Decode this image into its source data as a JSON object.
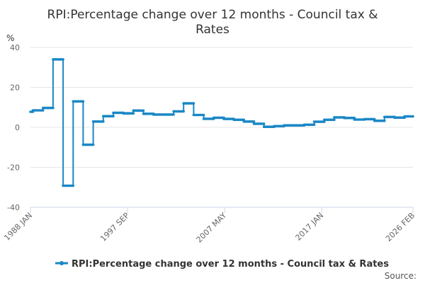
{
  "chart_data": {
    "type": "line",
    "title_lines": [
      "RPI:Percentage change over 12 months - Council tax &",
      "Rates"
    ],
    "ylabel": "%",
    "ylim": [
      -40,
      40
    ],
    "yticks": [
      "40",
      "20",
      "0",
      "-20",
      "-40"
    ],
    "ytick_values": [
      40,
      20,
      0,
      -20,
      -40
    ],
    "xlim": [
      1988.0,
      2026.083
    ],
    "xticks": [
      {
        "label": "1988 JAN",
        "x": 1988.0
      },
      {
        "label": "1997 SEP",
        "x": 1997.667
      },
      {
        "label": "2007 MAY",
        "x": 2007.333
      },
      {
        "label": "2017 JAN",
        "x": 2017.0
      },
      {
        "label": "2026 FEB",
        "x": 2026.083
      }
    ],
    "series": [
      {
        "name": "RPI:Percentage change over 12 months - Council tax & Rates",
        "color": "#1a87c6",
        "steps": [
          {
            "start": 1988.0,
            "end": 1988.25,
            "value": 7.8
          },
          {
            "start": 1988.25,
            "end": 1989.25,
            "value": 8.5
          },
          {
            "start": 1989.25,
            "end": 1990.25,
            "value": 9.7
          },
          {
            "start": 1990.25,
            "end": 1991.25,
            "value": 34.0
          },
          {
            "start": 1991.25,
            "end": 1992.25,
            "value": -29.2
          },
          {
            "start": 1992.25,
            "end": 1993.25,
            "value": 13.0
          },
          {
            "start": 1993.25,
            "end": 1994.25,
            "value": -8.7
          },
          {
            "start": 1994.25,
            "end": 1995.25,
            "value": 2.9
          },
          {
            "start": 1995.25,
            "end": 1996.25,
            "value": 5.6
          },
          {
            "start": 1996.25,
            "end": 1997.25,
            "value": 7.3
          },
          {
            "start": 1997.25,
            "end": 1998.25,
            "value": 7.0
          },
          {
            "start": 1998.25,
            "end": 1999.25,
            "value": 8.4
          },
          {
            "start": 1999.25,
            "end": 2000.25,
            "value": 6.8
          },
          {
            "start": 2000.25,
            "end": 2002.25,
            "value": 6.4
          },
          {
            "start": 2002.25,
            "end": 2003.25,
            "value": 8.0
          },
          {
            "start": 2003.25,
            "end": 2004.25,
            "value": 12.0
          },
          {
            "start": 2004.25,
            "end": 2005.25,
            "value": 6.2
          },
          {
            "start": 2005.25,
            "end": 2006.25,
            "value": 4.3
          },
          {
            "start": 2006.25,
            "end": 2007.25,
            "value": 4.8
          },
          {
            "start": 2007.25,
            "end": 2008.25,
            "value": 4.2
          },
          {
            "start": 2008.25,
            "end": 2009.25,
            "value": 3.8
          },
          {
            "start": 2009.25,
            "end": 2010.25,
            "value": 2.9
          },
          {
            "start": 2010.25,
            "end": 2011.25,
            "value": 1.8
          },
          {
            "start": 2011.25,
            "end": 2012.25,
            "value": 0.3
          },
          {
            "start": 2012.25,
            "end": 2013.25,
            "value": 0.6
          },
          {
            "start": 2013.25,
            "end": 2015.25,
            "value": 1.0
          },
          {
            "start": 2015.25,
            "end": 2016.25,
            "value": 1.3
          },
          {
            "start": 2016.25,
            "end": 2017.25,
            "value": 2.8
          },
          {
            "start": 2017.25,
            "end": 2018.25,
            "value": 3.8
          },
          {
            "start": 2018.25,
            "end": 2019.25,
            "value": 5.0
          },
          {
            "start": 2019.25,
            "end": 2020.25,
            "value": 4.7
          },
          {
            "start": 2020.25,
            "end": 2021.25,
            "value": 3.9
          },
          {
            "start": 2021.25,
            "end": 2022.25,
            "value": 4.1
          },
          {
            "start": 2022.25,
            "end": 2023.25,
            "value": 3.3
          },
          {
            "start": 2023.25,
            "end": 2024.25,
            "value": 5.2
          },
          {
            "start": 2024.25,
            "end": 2025.25,
            "value": 4.9
          },
          {
            "start": 2025.25,
            "end": 2026.083,
            "value": 5.5
          }
        ]
      }
    ],
    "legend_position": "bottom-center"
  },
  "footer": {
    "source_label": "Source:"
  }
}
